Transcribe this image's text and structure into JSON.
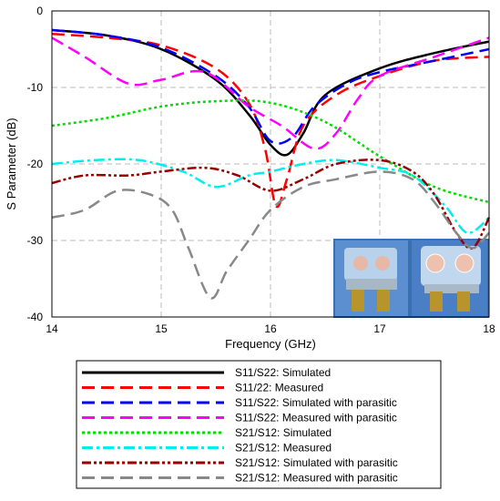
{
  "chart_data": {
    "type": "line",
    "xlabel": "Frequency (GHz)",
    "ylabel": "S Parameter (dB)",
    "xlim": [
      14,
      18
    ],
    "ylim": [
      -40,
      0
    ],
    "x_ticks": [
      "14",
      "15",
      "16",
      "17",
      "18"
    ],
    "y_ticks": [
      "0",
      "-10",
      "-20",
      "-30",
      "-40"
    ],
    "grid": true,
    "legend_position": "below",
    "series": [
      {
        "name": "S11/S22: Simulated",
        "color": "#000000",
        "dash": "solid",
        "x": [
          14,
          14.5,
          15,
          15.5,
          15.8,
          16,
          16.15,
          16.3,
          16.5,
          17,
          17.5,
          18
        ],
        "y": [
          -2.5,
          -3.2,
          -5,
          -9,
          -13.5,
          -17.5,
          -18.8,
          -16,
          -11,
          -7.5,
          -5.5,
          -4
        ]
      },
      {
        "name": "S11/22: Measured",
        "color": "#ff0000",
        "dash": "long-dash",
        "x": [
          14,
          14.5,
          15,
          15.5,
          15.8,
          15.95,
          16.05,
          16.15,
          16.3,
          16.6,
          17,
          17.5,
          18
        ],
        "y": [
          -3,
          -3.5,
          -4.5,
          -7.5,
          -12,
          -18,
          -25.5,
          -22,
          -15,
          -11,
          -8.5,
          -6.5,
          -6
        ]
      },
      {
        "name": "S11/S22: Simulated with parasitic",
        "color": "#0000ff",
        "dash": "long-dash",
        "x": [
          14,
          14.5,
          15,
          15.5,
          15.8,
          16,
          16.2,
          16.4,
          16.7,
          17,
          17.5,
          18
        ],
        "y": [
          -2.5,
          -3.2,
          -4.8,
          -8.5,
          -12.5,
          -17,
          -16.5,
          -12.5,
          -9.5,
          -8,
          -6.5,
          -5
        ]
      },
      {
        "name": "S11/S22: Measured with parasitic",
        "color": "#ff00ff",
        "dash": "long-dash",
        "x": [
          14,
          14.3,
          14.7,
          15,
          15.4,
          15.8,
          16.1,
          16.4,
          16.6,
          16.8,
          17,
          17.5,
          18
        ],
        "y": [
          -3.5,
          -6,
          -9.5,
          -9,
          -8,
          -12.5,
          -15,
          -18,
          -16,
          -11.5,
          -8.5,
          -6,
          -3.5
        ]
      },
      {
        "name": "S21/S12: Simulated",
        "color": "#00dd00",
        "dash": "dotted",
        "x": [
          14,
          14.5,
          15,
          15.5,
          16,
          16.5,
          17,
          17.5,
          18
        ],
        "y": [
          -15,
          -14,
          -12.5,
          -11.8,
          -12,
          -14.5,
          -19,
          -23,
          -25
        ]
      },
      {
        "name": "S21/S12: Measured",
        "color": "#00eeee",
        "dash": "dash-dot",
        "x": [
          14,
          14.4,
          14.8,
          15.2,
          15.5,
          15.8,
          16,
          16.3,
          16.6,
          17,
          17.3,
          17.6,
          17.8,
          18
        ],
        "y": [
          -20,
          -19.5,
          -19.5,
          -21,
          -23,
          -21.5,
          -21,
          -20,
          -19.5,
          -20.5,
          -21.5,
          -25.5,
          -29,
          -27
        ]
      },
      {
        "name": "S21/S12: Simulated with parasitic",
        "color": "#990000",
        "dash": "dash-dot-dot",
        "x": [
          14,
          14.3,
          14.7,
          15,
          15.4,
          15.7,
          16,
          16.3,
          16.6,
          17,
          17.3,
          17.5,
          17.7,
          17.85,
          18
        ],
        "y": [
          -22.5,
          -21.5,
          -21.5,
          -21,
          -20.5,
          -21.5,
          -23.5,
          -22,
          -20,
          -19.5,
          -21,
          -24,
          -29,
          -31,
          -27
        ]
      },
      {
        "name": "S21/S12: Measured with parasitic",
        "color": "#888888",
        "dash": "long-dash",
        "x": [
          14,
          14.3,
          14.6,
          14.9,
          15.1,
          15.25,
          15.45,
          15.6,
          15.8,
          16,
          16.3,
          16.6,
          17,
          17.3,
          17.5,
          17.7,
          17.85,
          18
        ],
        "y": [
          -27,
          -26,
          -23.5,
          -24,
          -26,
          -31,
          -37.5,
          -34,
          -30,
          -26,
          -23,
          -22,
          -21,
          -22,
          -25,
          -29,
          -31,
          -29
        ]
      }
    ]
  }
}
